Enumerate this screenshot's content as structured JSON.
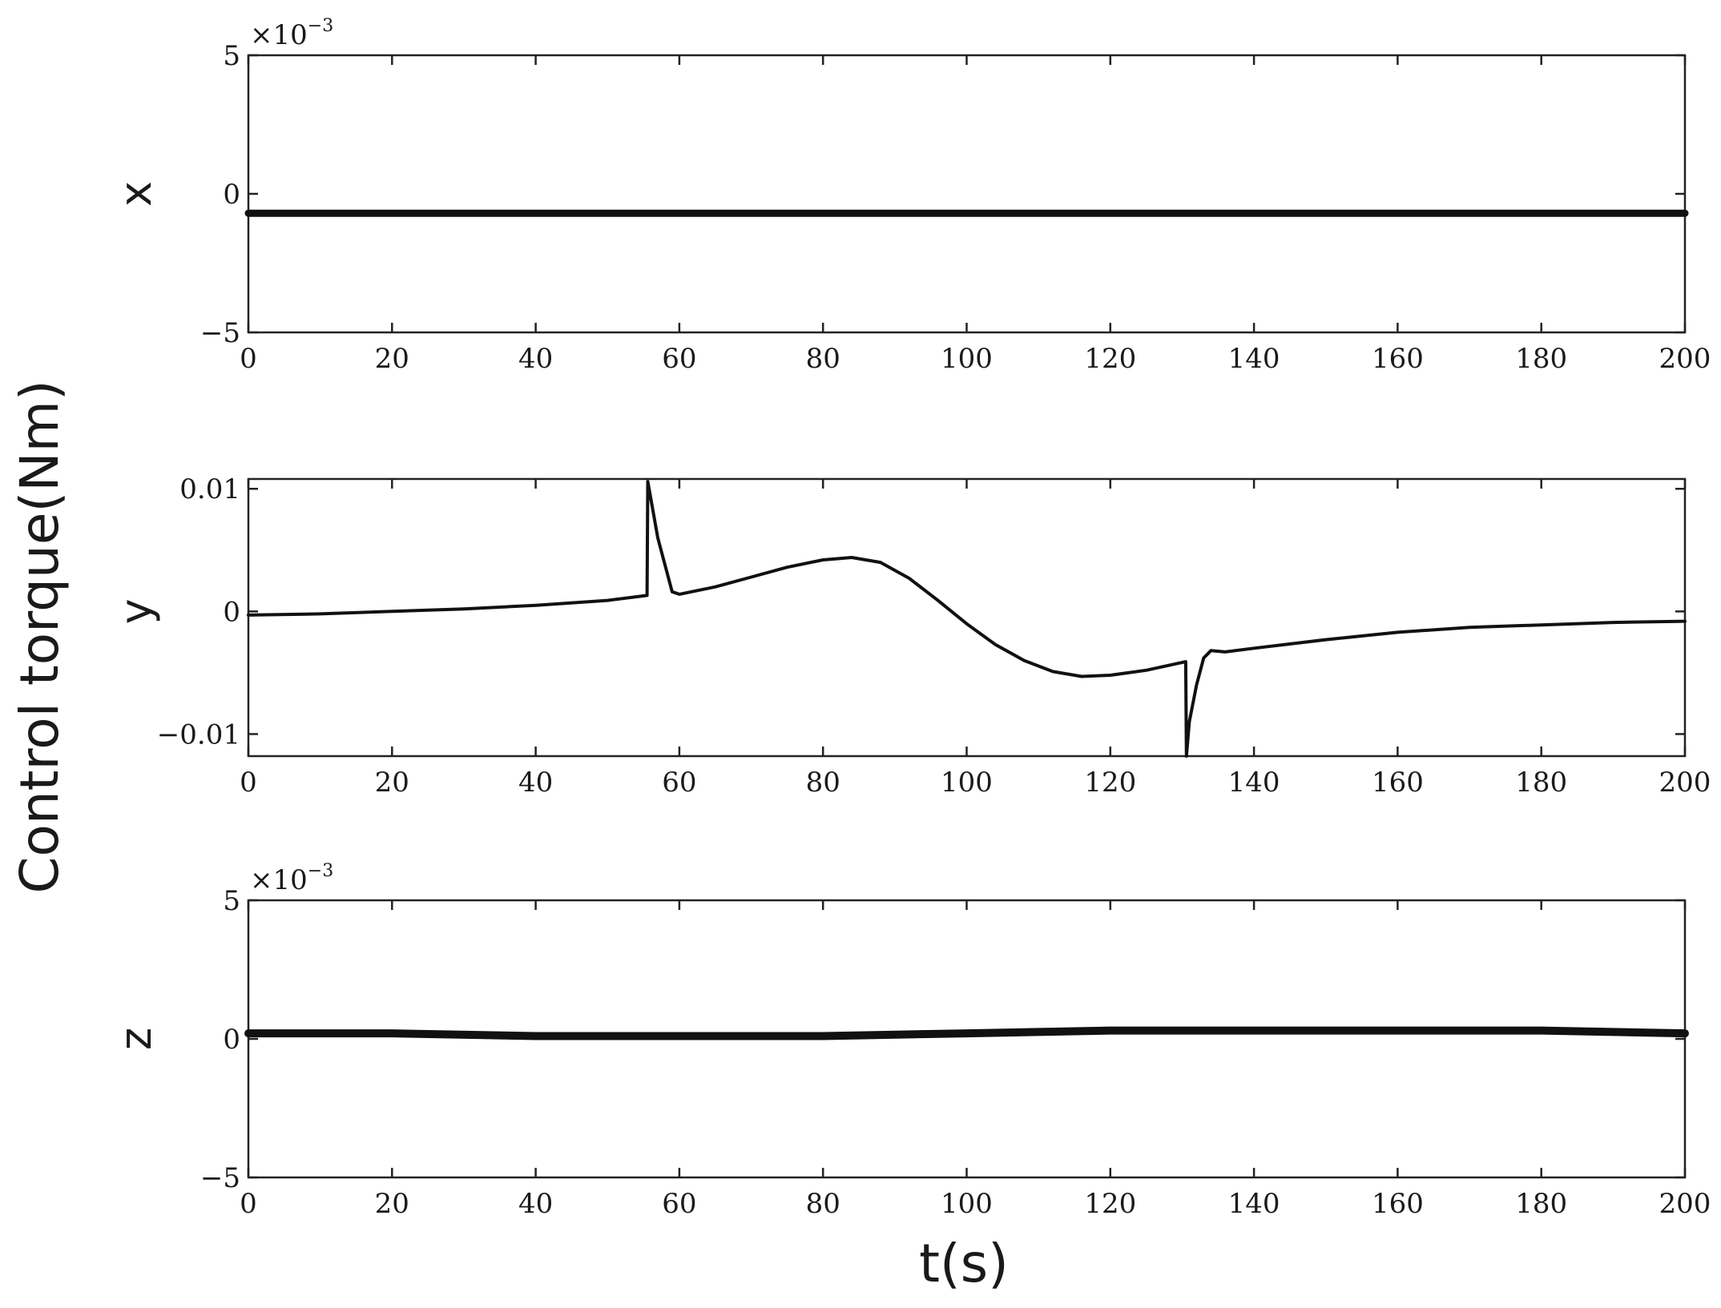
{
  "ylabel": "Control torque(Nm)",
  "xlabel": "t(s)",
  "chart_data": [
    {
      "type": "line",
      "panel_label": "x",
      "exponent": "-3",
      "x_ticks": [
        0,
        20,
        40,
        60,
        80,
        100,
        120,
        140,
        160,
        180,
        200
      ],
      "y_ticks": [
        -5,
        0,
        5
      ],
      "y_tick_labels": [
        "−5",
        "0",
        "5"
      ],
      "xlim": [
        0,
        200
      ],
      "ylim": [
        -0.005,
        0.005
      ],
      "series": [
        {
          "x": [
            0,
            20,
            40,
            60,
            80,
            100,
            120,
            140,
            160,
            180,
            200
          ],
          "values": [
            -0.0007,
            -0.0007,
            -0.0007,
            -0.0007,
            -0.0007,
            -0.0007,
            -0.0007,
            -0.0007,
            -0.0007,
            -0.0007,
            -0.0007
          ]
        }
      ]
    },
    {
      "type": "line",
      "panel_label": "y",
      "exponent": "",
      "x_ticks": [
        0,
        20,
        40,
        60,
        80,
        100,
        120,
        140,
        160,
        180,
        200
      ],
      "y_ticks": [
        -0.01,
        0,
        0.01
      ],
      "y_tick_labels": [
        "−0.01",
        "0",
        "0.01"
      ],
      "xlim": [
        0,
        200
      ],
      "ylim": [
        -0.0118,
        0.0108
      ],
      "series": [
        {
          "x": [
            0,
            10,
            20,
            30,
            40,
            50,
            55.5,
            55.6,
            57,
            59,
            60,
            65,
            70,
            75,
            80,
            84,
            88,
            92,
            96,
            100,
            104,
            108,
            112,
            116,
            120,
            125,
            130.5,
            130.6,
            131,
            132,
            133,
            134,
            136,
            140,
            150,
            160,
            170,
            180,
            190,
            200
          ],
          "values": [
            -0.0003,
            -0.0002,
            0.0,
            0.0002,
            0.0005,
            0.0009,
            0.0013,
            0.0106,
            0.006,
            0.0016,
            0.0014,
            0.002,
            0.0028,
            0.0036,
            0.0042,
            0.0044,
            0.004,
            0.0027,
            0.0009,
            -0.001,
            -0.0027,
            -0.004,
            -0.0049,
            -0.0053,
            -0.0052,
            -0.0048,
            -0.0041,
            -0.0118,
            -0.009,
            -0.006,
            -0.0038,
            -0.0032,
            -0.0033,
            -0.003,
            -0.0023,
            -0.0017,
            -0.0013,
            -0.0011,
            -0.0009,
            -0.0008
          ]
        }
      ]
    },
    {
      "type": "line",
      "panel_label": "z",
      "exponent": "-3",
      "x_ticks": [
        0,
        20,
        40,
        60,
        80,
        100,
        120,
        140,
        160,
        180,
        200
      ],
      "y_ticks": [
        -5,
        0,
        5
      ],
      "y_tick_labels": [
        "−5",
        "0",
        "5"
      ],
      "xlim": [
        0,
        200
      ],
      "ylim": [
        -0.005,
        0.005
      ],
      "series": [
        {
          "x": [
            0,
            20,
            40,
            60,
            80,
            100,
            120,
            140,
            160,
            180,
            200
          ],
          "values": [
            0.0002,
            0.0002,
            0.0001,
            0.0001,
            0.0001,
            0.0002,
            0.0003,
            0.0003,
            0.0003,
            0.0003,
            0.0002
          ]
        }
      ]
    }
  ]
}
